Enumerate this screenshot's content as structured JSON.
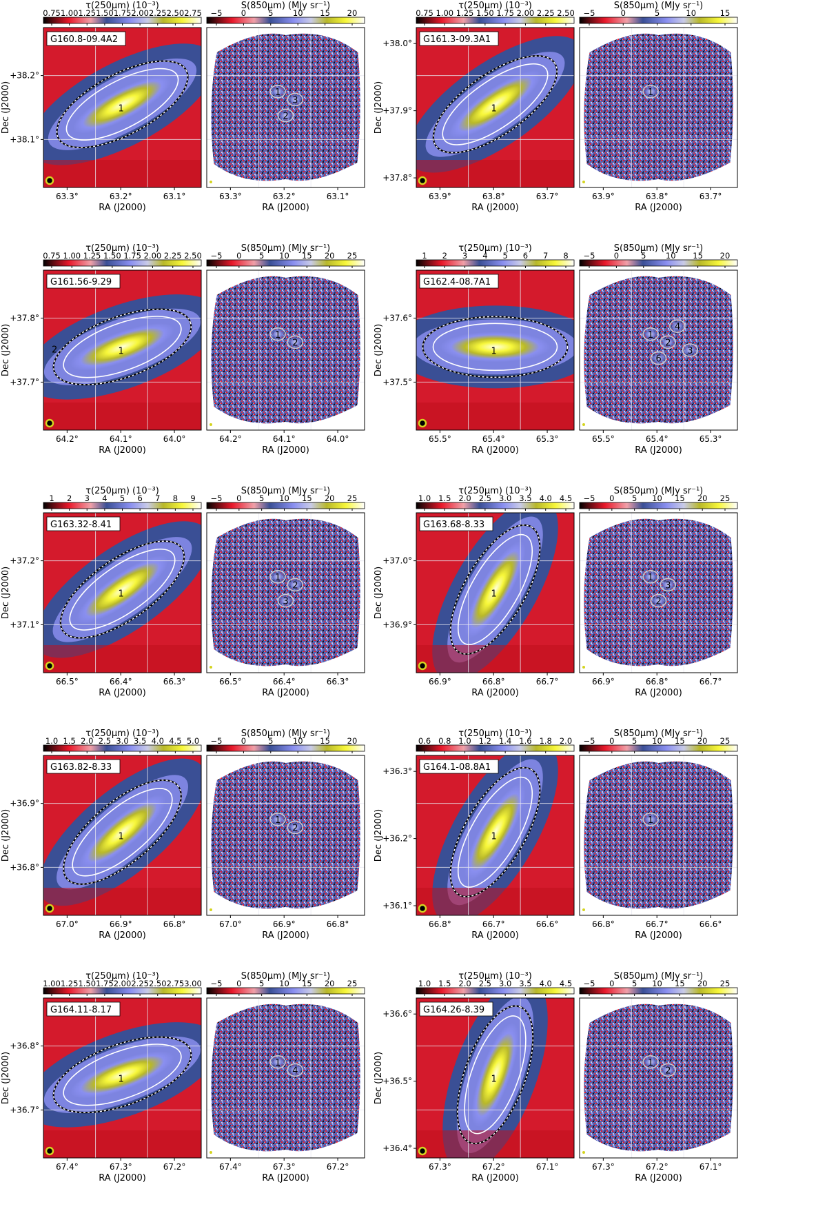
{
  "figure": {
    "labels": {
      "tau_colorbar": "τ(250µm) (10⁻³)",
      "s850_colorbar": "S(850µm) (MJy sr⁻¹)",
      "x_axis": "RA (J2000)",
      "y_axis": "Dec (J2000)"
    },
    "colors": {
      "cmap": [
        "#000000",
        "#e8182a",
        "#f0a0a8",
        "#3a4f95",
        "#8a8ff0",
        "#c9cbe8",
        "#b8b82a",
        "#f7f73a",
        "#ffffff"
      ],
      "contour_white": "#ffffff",
      "contour_black": "#000000",
      "star": "#2ab0b0",
      "beam": "#d4d420"
    },
    "fields": [
      {
        "name": "G160.8-09.4A2",
        "tau_ticks": [
          "0.75",
          "1.00",
          "1.25",
          "1.50",
          "1.75",
          "2.00",
          "2.25",
          "2.50",
          "2.75"
        ],
        "s_ticks": [
          "−5",
          "0",
          "5",
          "10",
          "15",
          "20"
        ],
        "ra_ticks": [
          "63.3°",
          "63.2°",
          "63.1°"
        ],
        "dec_ticks": [
          "+38.2°",
          "+38.1°"
        ],
        "clump_labels": [
          "1"
        ],
        "source_labels": [
          "1",
          "3",
          "2"
        ]
      },
      {
        "name": "G161.3-09.3A1",
        "tau_ticks": [
          "0.75",
          "1.00",
          "1.25",
          "1.50",
          "1.75",
          "2.00",
          "2.25",
          "2.50"
        ],
        "s_ticks": [
          "−5",
          "0",
          "5",
          "10",
          "15"
        ],
        "ra_ticks": [
          "63.9°",
          "63.8°",
          "63.7°"
        ],
        "dec_ticks": [
          "+38.0°",
          "+37.9°",
          "+37.8°"
        ],
        "clump_labels": [
          "1"
        ],
        "source_labels": [
          "1"
        ]
      },
      {
        "name": "G161.56-9.29",
        "tau_ticks": [
          "0.75",
          "1.00",
          "1.25",
          "1.50",
          "1.75",
          "2.00",
          "2.25",
          "2.50"
        ],
        "s_ticks": [
          "−5",
          "0",
          "5",
          "10",
          "15",
          "20",
          "25"
        ],
        "ra_ticks": [
          "64.2°",
          "64.1°",
          "64.0°"
        ],
        "dec_ticks": [
          "+37.8°",
          "+37.7°"
        ],
        "clump_labels": [
          "1",
          "2"
        ],
        "source_labels": [
          "1",
          "2"
        ]
      },
      {
        "name": "G162.4-08.7A1",
        "tau_ticks": [
          "1",
          "2",
          "3",
          "4",
          "5",
          "6",
          "7",
          "8"
        ],
        "s_ticks": [
          "−5",
          "0",
          "5",
          "10",
          "15",
          "20"
        ],
        "ra_ticks": [
          "65.5°",
          "65.4°",
          "65.3°"
        ],
        "dec_ticks": [
          "+37.6°",
          "+37.5°"
        ],
        "clump_labels": [
          "1"
        ],
        "source_labels": [
          "1",
          "2",
          "6",
          "4",
          "3"
        ]
      },
      {
        "name": "G163.32-8.41",
        "tau_ticks": [
          "1",
          "2",
          "3",
          "4",
          "5",
          "6",
          "7",
          "8",
          "9"
        ],
        "s_ticks": [
          "−5",
          "0",
          "5",
          "10",
          "15",
          "20",
          "25"
        ],
        "ra_ticks": [
          "66.5°",
          "66.4°",
          "66.3°"
        ],
        "dec_ticks": [
          "+37.2°",
          "+37.1°"
        ],
        "clump_labels": [
          "1"
        ],
        "source_labels": [
          "1",
          "2",
          "3"
        ]
      },
      {
        "name": "G163.68-8.33",
        "tau_ticks": [
          "1.0",
          "1.5",
          "2.0",
          "2.5",
          "3.0",
          "3.5",
          "4.0",
          "4.5"
        ],
        "s_ticks": [
          "−5",
          "0",
          "5",
          "10",
          "15",
          "20",
          "25"
        ],
        "ra_ticks": [
          "66.9°",
          "66.8°",
          "66.7°"
        ],
        "dec_ticks": [
          "+37.0°",
          "+36.9°"
        ],
        "clump_labels": [
          "1"
        ],
        "source_labels": [
          "1",
          "3",
          "2"
        ]
      },
      {
        "name": "G163.82-8.33",
        "tau_ticks": [
          "1.0",
          "1.5",
          "2.0",
          "2.5",
          "3.0",
          "3.5",
          "4.0",
          "4.5",
          "5.0"
        ],
        "s_ticks": [
          "−5",
          "0",
          "5",
          "10",
          "15",
          "20"
        ],
        "ra_ticks": [
          "67.0°",
          "66.9°",
          "66.8°"
        ],
        "dec_ticks": [
          "+36.9°",
          "+36.8°"
        ],
        "clump_labels": [
          "1"
        ],
        "source_labels": [
          "1",
          "2"
        ]
      },
      {
        "name": "G164.1-08.8A1",
        "tau_ticks": [
          "0.6",
          "0.8",
          "1.0",
          "1.2",
          "1.4",
          "1.6",
          "1.8",
          "2.0"
        ],
        "s_ticks": [
          "−5",
          "0",
          "5",
          "10",
          "15",
          "20",
          "25"
        ],
        "ra_ticks": [
          "66.8°",
          "66.7°",
          "66.6°"
        ],
        "dec_ticks": [
          "+36.3°",
          "+36.2°",
          "+36.1°"
        ],
        "clump_labels": [
          "1"
        ],
        "source_labels": [
          "1"
        ]
      },
      {
        "name": "G164.11-8.17",
        "tau_ticks": [
          "1.00",
          "1.25",
          "1.50",
          "1.75",
          "2.00",
          "2.25",
          "2.50",
          "2.75",
          "3.00"
        ],
        "s_ticks": [
          "−5",
          "0",
          "5",
          "10",
          "15",
          "20",
          "25"
        ],
        "ra_ticks": [
          "67.4°",
          "67.3°",
          "67.2°"
        ],
        "dec_ticks": [
          "+36.8°",
          "+36.7°"
        ],
        "clump_labels": [
          "1"
        ],
        "source_labels": [
          "1",
          "4"
        ]
      },
      {
        "name": "G164.26-8.39",
        "tau_ticks": [
          "1.0",
          "1.5",
          "2.0",
          "2.5",
          "3.0",
          "3.5",
          "4.0",
          "4.5"
        ],
        "s_ticks": [
          "−5",
          "0",
          "5",
          "10",
          "15",
          "20",
          "25"
        ],
        "ra_ticks": [
          "67.3°",
          "67.2°",
          "67.1°"
        ],
        "dec_ticks": [
          "+36.6°",
          "+36.5°",
          "+36.4°"
        ],
        "clump_labels": [
          "1"
        ],
        "source_labels": [
          "1",
          "2"
        ]
      }
    ]
  }
}
